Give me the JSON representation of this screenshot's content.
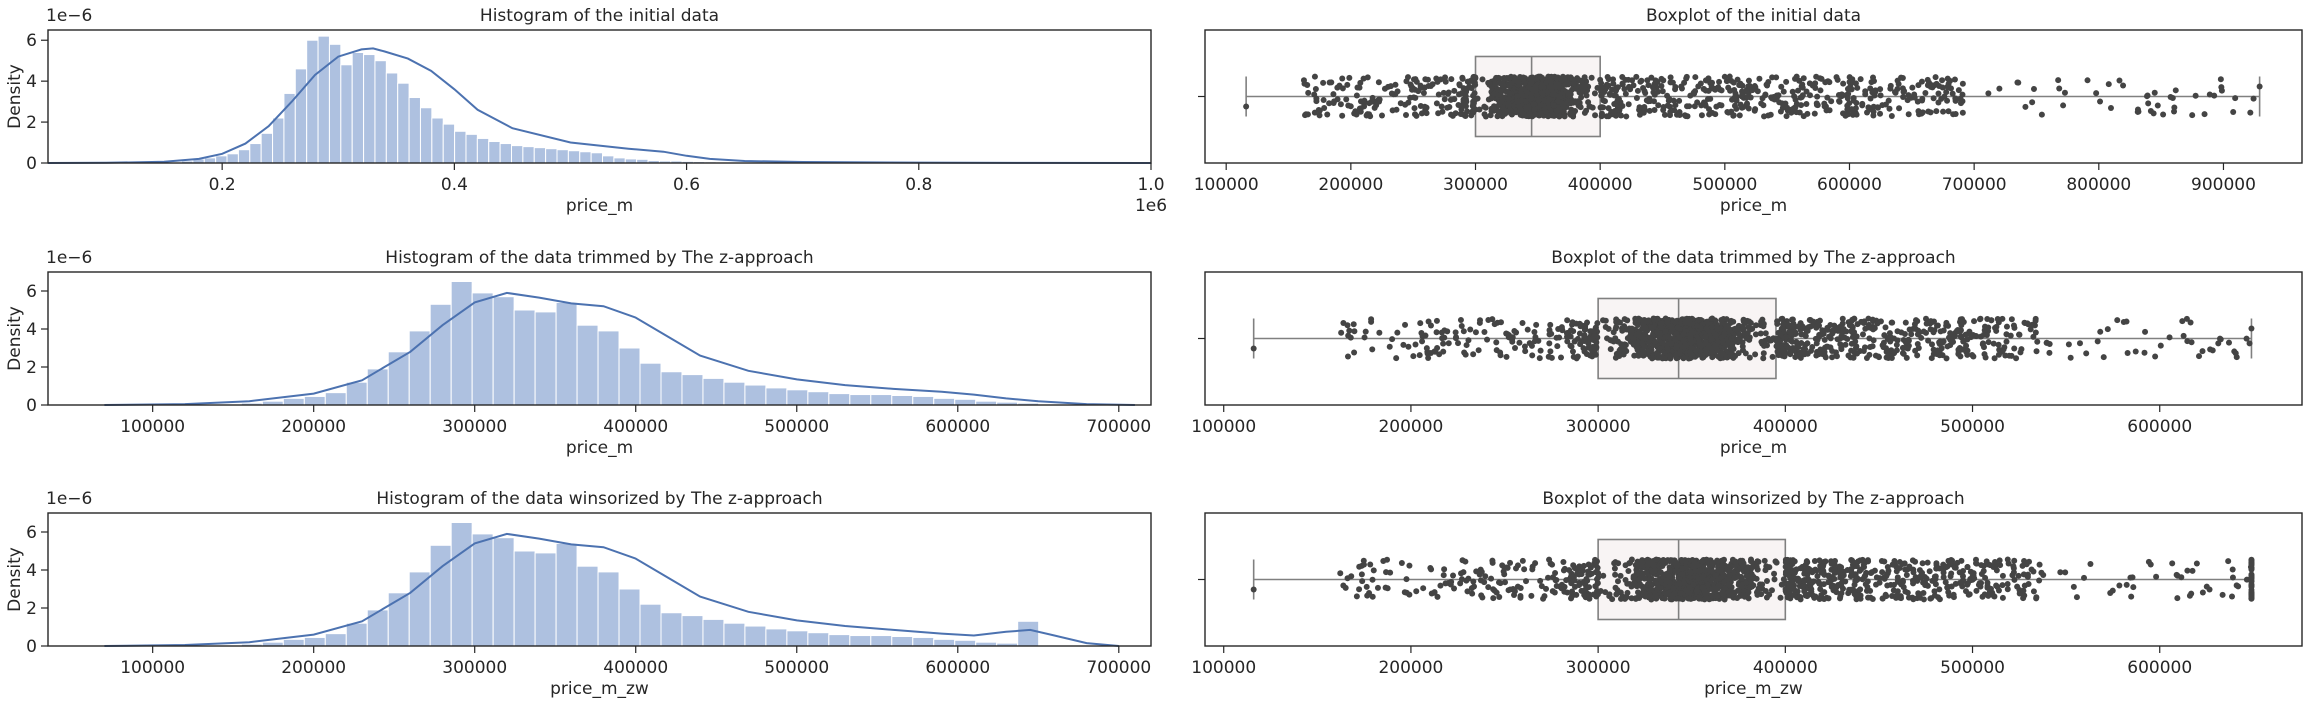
{
  "chart_data": [
    {
      "type": "histogram",
      "title": "Histogram of the initial data",
      "xlabel": "price_m",
      "ylabel": "Density",
      "x_offset_label": "1e6",
      "y_offset_label": "1e−6",
      "xlim": [
        0.05,
        1.0
      ],
      "ylim": [
        0,
        6.5
      ],
      "xticks": [
        0.2,
        0.4,
        0.6,
        0.8,
        1.0
      ],
      "xtick_labels": [
        "0.2",
        "0.4",
        "0.6",
        "0.8",
        "1.0"
      ],
      "yticks": [
        0,
        2,
        4,
        6
      ],
      "ytick_labels": [
        "0",
        "2",
        "4",
        "6"
      ],
      "bar_color": "#aec1e0",
      "kde_color": "#4c72b0",
      "bin_edges": [
        0.116,
        0.1258,
        0.1356,
        0.1454,
        0.1552,
        0.165,
        0.1748,
        0.1846,
        0.1944,
        0.2042,
        0.214,
        0.2238,
        0.2336,
        0.2434,
        0.2532,
        0.263,
        0.2728,
        0.2826,
        0.2924,
        0.3022,
        0.312,
        0.3218,
        0.3316,
        0.3414,
        0.3512,
        0.361,
        0.3708,
        0.3806,
        0.3904,
        0.4002,
        0.41,
        0.4198,
        0.4296,
        0.4394,
        0.4492,
        0.459,
        0.4688,
        0.4786,
        0.4884,
        0.4982,
        0.508,
        0.5178,
        0.5276,
        0.5374,
        0.5472,
        0.557,
        0.5668,
        0.5766,
        0.5864,
        0.5962,
        0.606,
        0.6158,
        0.6256,
        0.6354,
        0.6452,
        0.655,
        0.6648,
        0.6746,
        0.6844,
        0.6942,
        0.704,
        0.7138,
        0.7236,
        0.7334,
        0.7432,
        0.753,
        0.7628,
        0.7726,
        0.7824,
        0.7922,
        0.802,
        0.8118,
        0.8216,
        0.8314,
        0.8412,
        0.851,
        0.8608,
        0.8706,
        0.8804,
        0.8902,
        0.9,
        0.9098,
        0.9196,
        0.9294
      ],
      "values": [
        0.02,
        0.0,
        0.03,
        0.06,
        0.05,
        0.1,
        0.2,
        0.25,
        0.35,
        0.45,
        0.65,
        0.95,
        1.45,
        2.2,
        3.4,
        4.6,
        6.0,
        6.2,
        5.8,
        4.8,
        5.4,
        5.3,
        5.0,
        4.4,
        3.9,
        3.2,
        2.7,
        2.2,
        1.9,
        1.55,
        1.4,
        1.2,
        1.05,
        0.95,
        0.85,
        0.8,
        0.75,
        0.7,
        0.65,
        0.6,
        0.55,
        0.5,
        0.35,
        0.25,
        0.2,
        0.18,
        0.12,
        0.1,
        0.1,
        0.08,
        0.07,
        0.06,
        0.05,
        0.05,
        0.04,
        0.04,
        0.03,
        0.03,
        0.02,
        0.02,
        0.02,
        0.02,
        0.02,
        0.02,
        0.01,
        0.01,
        0.01,
        0.01,
        0.01,
        0.01,
        0.01,
        0.01,
        0.01,
        0.01,
        0.0,
        0.01,
        0.0,
        0.0,
        0.01,
        0.0,
        0.0,
        0.0,
        0.01
      ],
      "kde": {
        "x": [
          0.05,
          0.1,
          0.15,
          0.18,
          0.2,
          0.22,
          0.24,
          0.26,
          0.28,
          0.3,
          0.32,
          0.33,
          0.34,
          0.36,
          0.38,
          0.4,
          0.42,
          0.45,
          0.5,
          0.55,
          0.58,
          0.6,
          0.62,
          0.65,
          0.7,
          0.8,
          0.9,
          1.0
        ],
        "y": [
          0.0,
          0.01,
          0.06,
          0.2,
          0.45,
          0.95,
          1.8,
          3.0,
          4.3,
          5.2,
          5.55,
          5.6,
          5.45,
          5.1,
          4.5,
          3.6,
          2.6,
          1.7,
          1.0,
          0.7,
          0.55,
          0.35,
          0.2,
          0.1,
          0.05,
          0.02,
          0.005,
          0.0
        ]
      }
    },
    {
      "type": "boxplot",
      "title": "Boxplot of the initial data",
      "xlabel": "price_m",
      "xlim": [
        83000,
        963000
      ],
      "xticks": [
        100000,
        200000,
        300000,
        400000,
        500000,
        600000,
        700000,
        800000,
        900000
      ],
      "xtick_labels": [
        "100000",
        "200000",
        "300000",
        "400000",
        "500000",
        "600000",
        "700000",
        "800000",
        "900000"
      ],
      "box": {
        "min": 116000,
        "q1": 300000,
        "median": 345000,
        "q3": 400000,
        "max": 929000
      },
      "strip": {
        "n": 1500,
        "right_skew": 0.42,
        "color": "#444444",
        "seed": 11
      },
      "box_fill": "#f8f4f4",
      "line_color": "#808080"
    },
    {
      "type": "histogram",
      "title": "Histogram of the data trimmed by The z-approach",
      "xlabel": "price_m",
      "ylabel": "Density",
      "y_offset_label": "1e−6",
      "xlim": [
        35000,
        720000
      ],
      "ylim": [
        0,
        7.0
      ],
      "xticks": [
        100000,
        200000,
        300000,
        400000,
        500000,
        600000,
        700000
      ],
      "xtick_labels": [
        "100000",
        "200000",
        "300000",
        "400000",
        "500000",
        "600000",
        "700000"
      ],
      "yticks": [
        0,
        2,
        4,
        6
      ],
      "ytick_labels": [
        "0",
        "2",
        "4",
        "6"
      ],
      "bar_color": "#aec1e0",
      "kde_color": "#4c72b0",
      "bin_edges": [
        116000,
        129030,
        142060,
        155090,
        168120,
        181150,
        194180,
        207210,
        220240,
        233270,
        246300,
        259330,
        272360,
        285390,
        298420,
        311450,
        324480,
        337510,
        350540,
        363570,
        376600,
        389630,
        402660,
        415690,
        428720,
        441750,
        454780,
        467810,
        480840,
        493870,
        506900,
        519930,
        532960,
        545990,
        559020,
        572050,
        585080,
        598110,
        611140,
        624170,
        637200,
        650230
      ],
      "values": [
        0.05,
        0.0,
        0.05,
        0.1,
        0.2,
        0.35,
        0.45,
        0.65,
        1.2,
        1.9,
        2.8,
        3.9,
        5.3,
        6.5,
        5.9,
        5.7,
        5.0,
        4.9,
        5.4,
        4.2,
        3.9,
        3.0,
        2.2,
        1.75,
        1.6,
        1.4,
        1.2,
        1.05,
        0.9,
        0.8,
        0.7,
        0.6,
        0.55,
        0.55,
        0.5,
        0.45,
        0.35,
        0.3,
        0.2,
        0.15,
        0.1
      ],
      "kde": {
        "x": [
          70000,
          120000,
          160000,
          200000,
          230000,
          260000,
          280000,
          300000,
          320000,
          340000,
          360000,
          380000,
          400000,
          420000,
          440000,
          470000,
          500000,
          530000,
          560000,
          590000,
          610000,
          630000,
          650000,
          680000,
          710000
        ],
        "y": [
          0.0,
          0.05,
          0.2,
          0.6,
          1.3,
          2.8,
          4.2,
          5.4,
          5.9,
          5.65,
          5.35,
          5.2,
          4.6,
          3.6,
          2.6,
          1.8,
          1.35,
          1.05,
          0.85,
          0.7,
          0.55,
          0.35,
          0.2,
          0.05,
          0.0
        ]
      }
    },
    {
      "type": "boxplot",
      "title": "Boxplot of the data trimmed by The z-approach",
      "xlabel": "price_m",
      "xlim": [
        90000,
        676000
      ],
      "xticks": [
        100000,
        200000,
        300000,
        400000,
        500000,
        600000
      ],
      "xtick_labels": [
        "100000",
        "200000",
        "300000",
        "400000",
        "500000",
        "600000"
      ],
      "box": {
        "min": 116000,
        "q1": 300000,
        "median": 343000,
        "q3": 395000,
        "max": 649000
      },
      "strip": {
        "n": 1500,
        "right_skew": 0.35,
        "color": "#444444",
        "seed": 23
      },
      "box_fill": "#f8f4f4",
      "line_color": "#808080"
    },
    {
      "type": "histogram",
      "title": "Histogram of the data winsorized by The z-approach",
      "xlabel": "price_m_zw",
      "ylabel": "Density",
      "y_offset_label": "1e−6",
      "xlim": [
        35000,
        720000
      ],
      "ylim": [
        0,
        7.0
      ],
      "xticks": [
        100000,
        200000,
        300000,
        400000,
        500000,
        600000,
        700000
      ],
      "xtick_labels": [
        "100000",
        "200000",
        "300000",
        "400000",
        "500000",
        "600000",
        "700000"
      ],
      "yticks": [
        0,
        2,
        4,
        6
      ],
      "ytick_labels": [
        "0",
        "2",
        "4",
        "6"
      ],
      "bar_color": "#aec1e0",
      "kde_color": "#4c72b0",
      "bin_edges": [
        116000,
        129030,
        142060,
        155090,
        168120,
        181150,
        194180,
        207210,
        220240,
        233270,
        246300,
        259330,
        272360,
        285390,
        298420,
        311450,
        324480,
        337510,
        350540,
        363570,
        376600,
        389630,
        402660,
        415690,
        428720,
        441750,
        454780,
        467810,
        480840,
        493870,
        506900,
        519930,
        532960,
        545990,
        559020,
        572050,
        585080,
        598110,
        611140,
        624170,
        637200,
        650230
      ],
      "values": [
        0.05,
        0.0,
        0.05,
        0.1,
        0.2,
        0.35,
        0.45,
        0.65,
        1.2,
        1.9,
        2.8,
        3.9,
        5.3,
        6.5,
        5.9,
        5.7,
        5.0,
        4.9,
        5.4,
        4.2,
        3.9,
        3.0,
        2.2,
        1.75,
        1.6,
        1.4,
        1.2,
        1.05,
        0.9,
        0.8,
        0.7,
        0.6,
        0.55,
        0.55,
        0.5,
        0.45,
        0.35,
        0.3,
        0.2,
        0.15,
        1.3
      ],
      "kde": {
        "x": [
          70000,
          120000,
          160000,
          200000,
          230000,
          260000,
          280000,
          300000,
          320000,
          340000,
          360000,
          380000,
          400000,
          420000,
          440000,
          470000,
          500000,
          530000,
          560000,
          590000,
          610000,
          630000,
          645000,
          660000,
          680000,
          700000
        ],
        "y": [
          0.0,
          0.05,
          0.2,
          0.6,
          1.3,
          2.8,
          4.2,
          5.4,
          5.9,
          5.65,
          5.35,
          5.2,
          4.6,
          3.6,
          2.6,
          1.8,
          1.35,
          1.05,
          0.85,
          0.65,
          0.55,
          0.75,
          0.85,
          0.55,
          0.15,
          0.0
        ]
      }
    },
    {
      "type": "boxplot",
      "title": "Boxplot of the data winsorized by The z-approach",
      "xlabel": "price_m_zw",
      "xlim": [
        90000,
        676000
      ],
      "xticks": [
        100000,
        200000,
        300000,
        400000,
        500000,
        600000
      ],
      "xtick_labels": [
        "100000",
        "200000",
        "300000",
        "400000",
        "500000",
        "600000"
      ],
      "box": {
        "min": 116000,
        "q1": 300000,
        "median": 343000,
        "q3": 400000,
        "max": 649000
      },
      "strip": {
        "n": 1500,
        "right_skew": 0.35,
        "clip_max": 649000,
        "clip_extra": 40,
        "color": "#444444",
        "seed": 37
      },
      "box_fill": "#f8f4f4",
      "line_color": "#808080"
    }
  ]
}
